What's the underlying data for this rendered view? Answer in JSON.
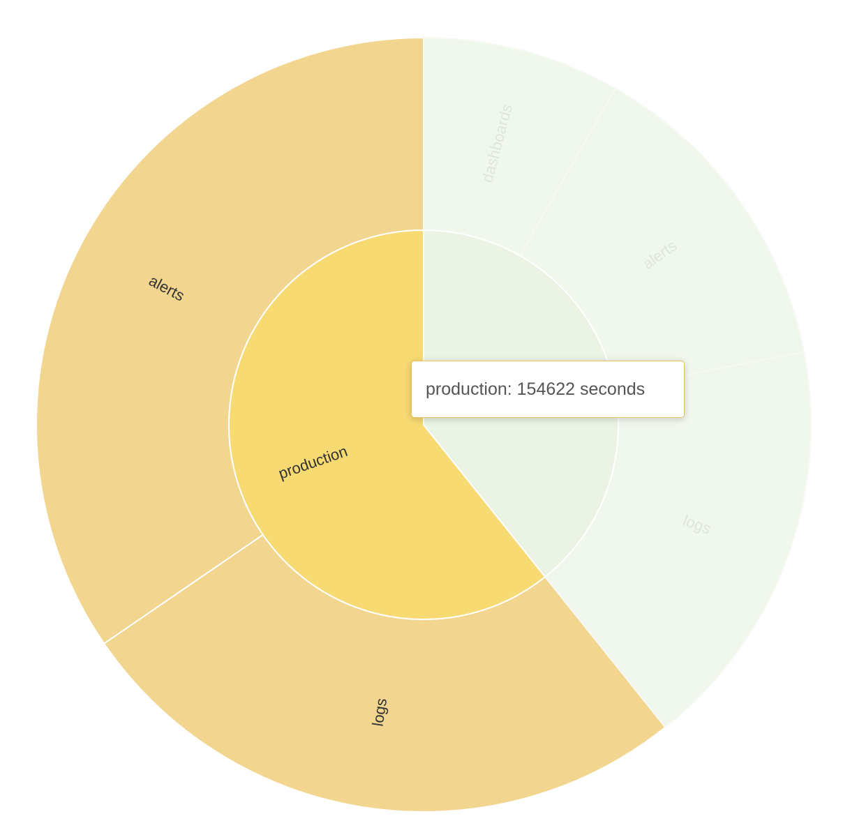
{
  "chart_data": {
    "type": "sunburst",
    "unit": "seconds",
    "inner_ring": [
      {
        "name": "production",
        "value": 154622,
        "color": "#f8da72",
        "highlighted": true
      },
      {
        "name": "",
        "value": 100000,
        "color": "#eaf3e4",
        "highlighted": false
      }
    ],
    "outer_ring": [
      {
        "parent": "production",
        "name": "alerts",
        "value": 88000,
        "color": "#f2d58f",
        "label_color": "#333333",
        "highlighted": true
      },
      {
        "parent": "production",
        "name": "logs",
        "value": 66622,
        "color": "#f2d58f",
        "label_color": "#333333",
        "highlighted": true
      },
      {
        "parent": "",
        "name": "logs",
        "value": 44000,
        "color": "#f0f7ec",
        "label_color": "#dde6d8",
        "highlighted": false
      },
      {
        "parent": "",
        "name": "alerts",
        "value": 35000,
        "color": "#f0f7ec",
        "label_color": "#dde6d8",
        "highlighted": false
      },
      {
        "parent": "",
        "name": "dashboards",
        "value": 21000,
        "color": "#f0f7ec",
        "label_color": "#dde6d8",
        "highlighted": false
      }
    ],
    "tooltip": {
      "text": "production: 154622 seconds"
    }
  }
}
